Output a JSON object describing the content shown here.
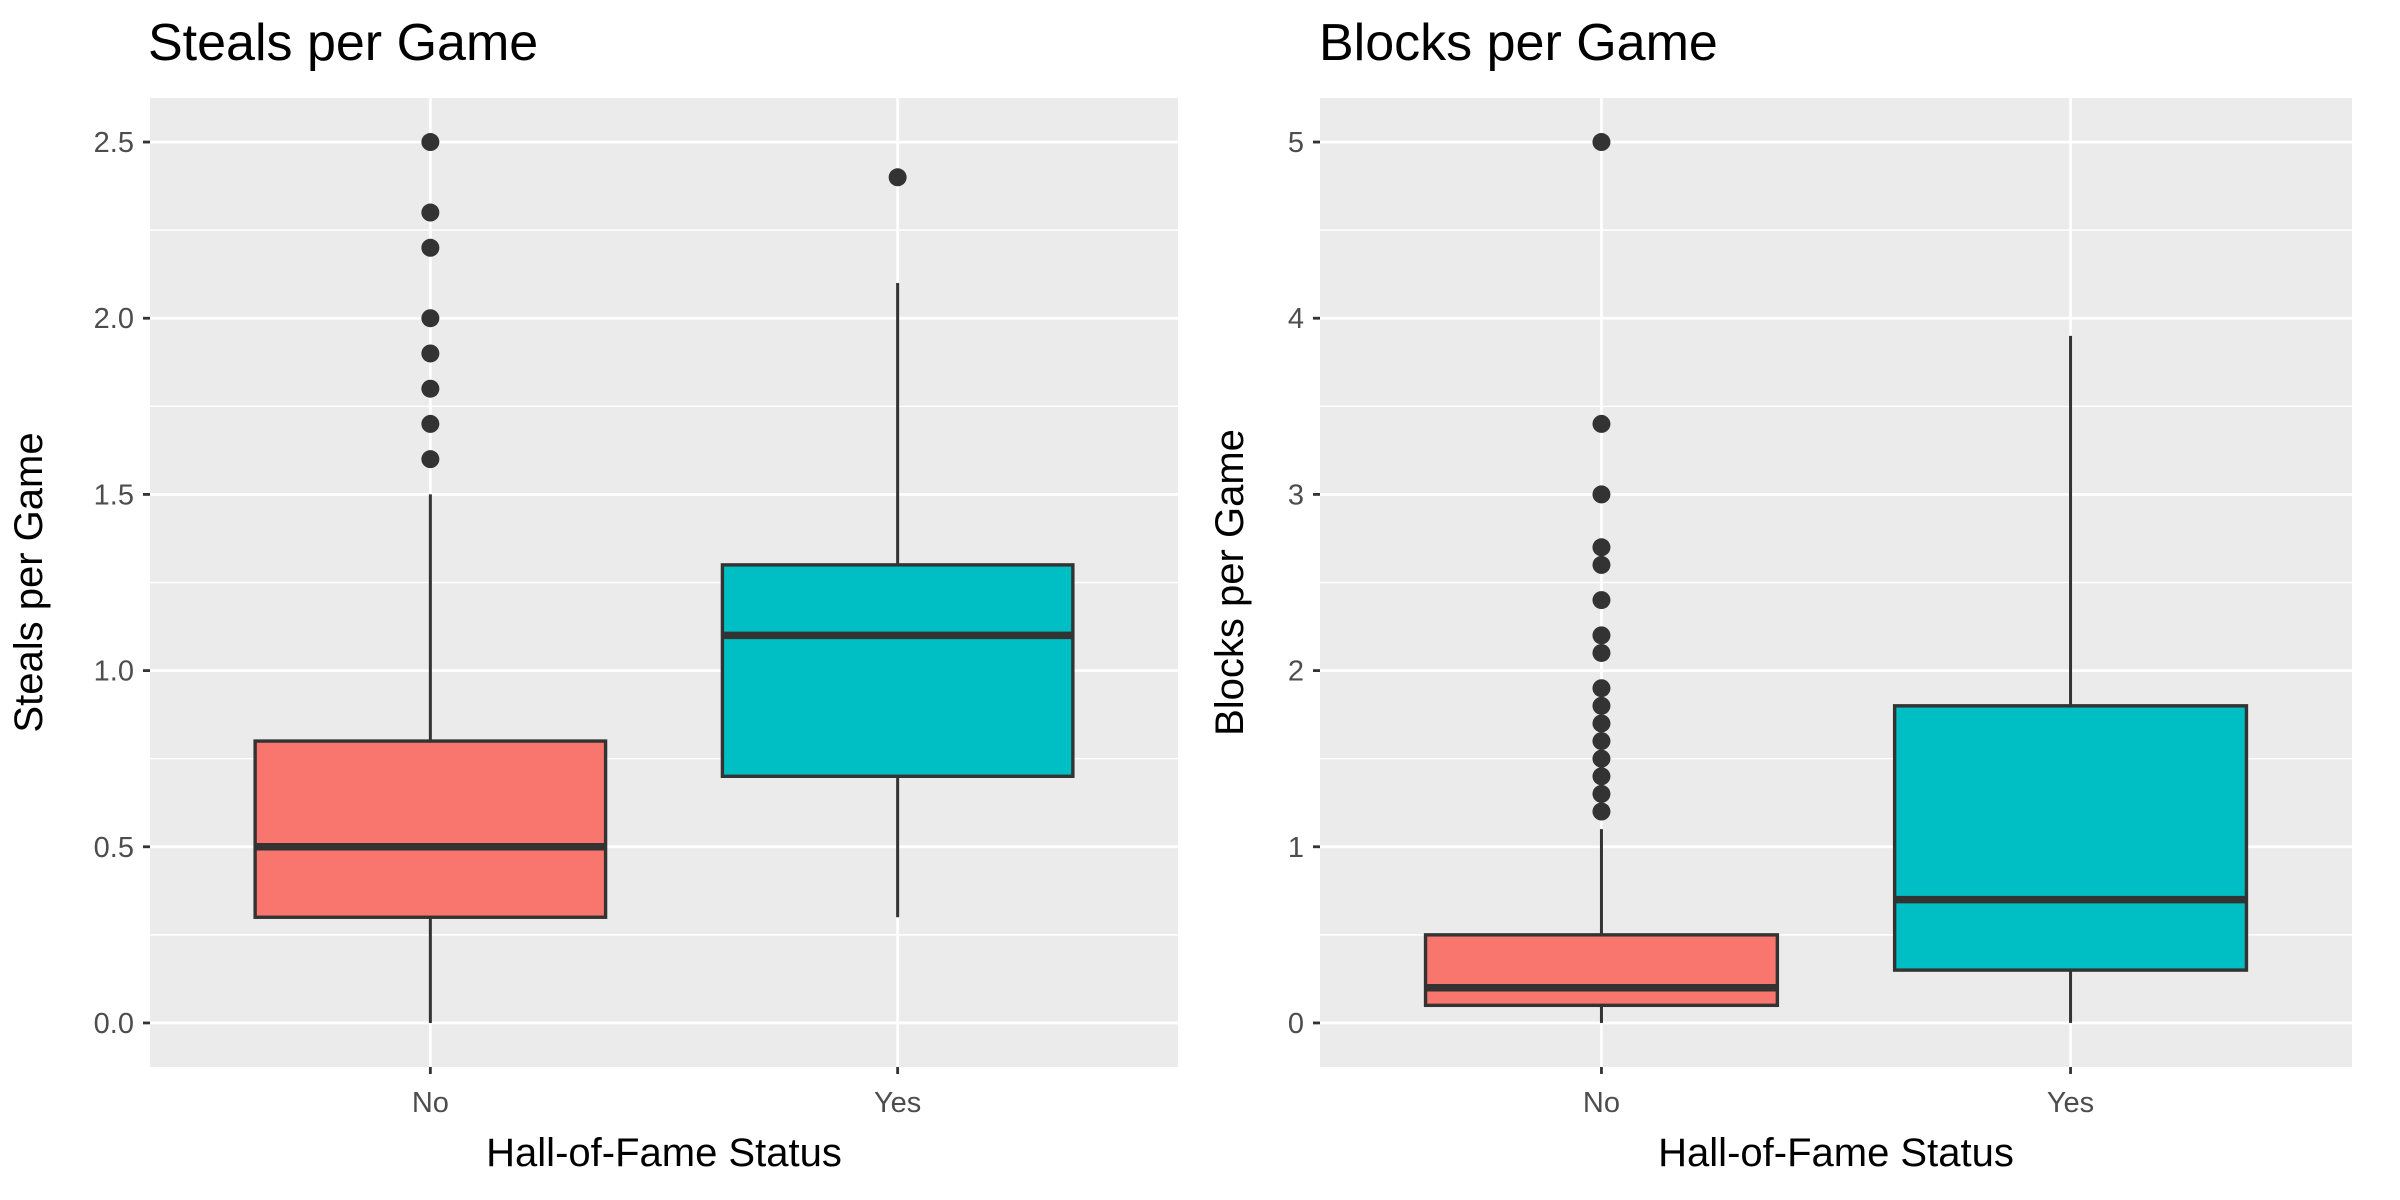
{
  "chart_data": [
    {
      "type": "boxplot",
      "title": "Steals per Game",
      "xlabel": "Hall-of-Fame Status",
      "ylabel": "Steals per Game",
      "categories": [
        "No",
        "Yes"
      ],
      "ylim": [
        -0.125,
        2.625
      ],
      "yticks": [
        0.0,
        0.5,
        1.0,
        1.5,
        2.0,
        2.5
      ],
      "ytick_labels": [
        "0.0",
        "0.5",
        "1.0",
        "1.5",
        "2.0",
        "2.5"
      ],
      "grid": true,
      "boxes": [
        {
          "category": "No",
          "color": "#F8766D",
          "whisker_low": 0.0,
          "q1": 0.3,
          "median": 0.5,
          "q3": 0.8,
          "whisker_high": 1.5,
          "outliers": [
            1.6,
            1.7,
            1.8,
            1.9,
            2.0,
            2.2,
            2.3,
            2.5
          ]
        },
        {
          "category": "Yes",
          "color": "#00BFC4",
          "whisker_low": 0.3,
          "q1": 0.7,
          "median": 1.1,
          "q3": 1.3,
          "whisker_high": 2.1,
          "outliers": [
            2.4
          ]
        }
      ]
    },
    {
      "type": "boxplot",
      "title": "Blocks per Game",
      "xlabel": "Hall-of-Fame Status",
      "ylabel": "Blocks per Game",
      "categories": [
        "No",
        "Yes"
      ],
      "ylim": [
        -0.25,
        5.25
      ],
      "yticks": [
        0,
        1,
        2,
        3,
        4,
        5
      ],
      "ytick_labels": [
        "0",
        "1",
        "2",
        "3",
        "4",
        "5"
      ],
      "grid": true,
      "boxes": [
        {
          "category": "No",
          "color": "#F8766D",
          "whisker_low": 0.0,
          "q1": 0.1,
          "median": 0.2,
          "q3": 0.5,
          "whisker_high": 1.1,
          "outliers": [
            1.2,
            1.3,
            1.4,
            1.5,
            1.6,
            1.7,
            1.8,
            1.9,
            2.1,
            2.2,
            2.4,
            2.6,
            2.7,
            3.0,
            3.4,
            5.0
          ]
        },
        {
          "category": "Yes",
          "color": "#00BFC4",
          "whisker_low": 0.0,
          "q1": 0.3,
          "median": 0.7,
          "q3": 1.8,
          "whisker_high": 3.9,
          "outliers": []
        }
      ]
    }
  ]
}
